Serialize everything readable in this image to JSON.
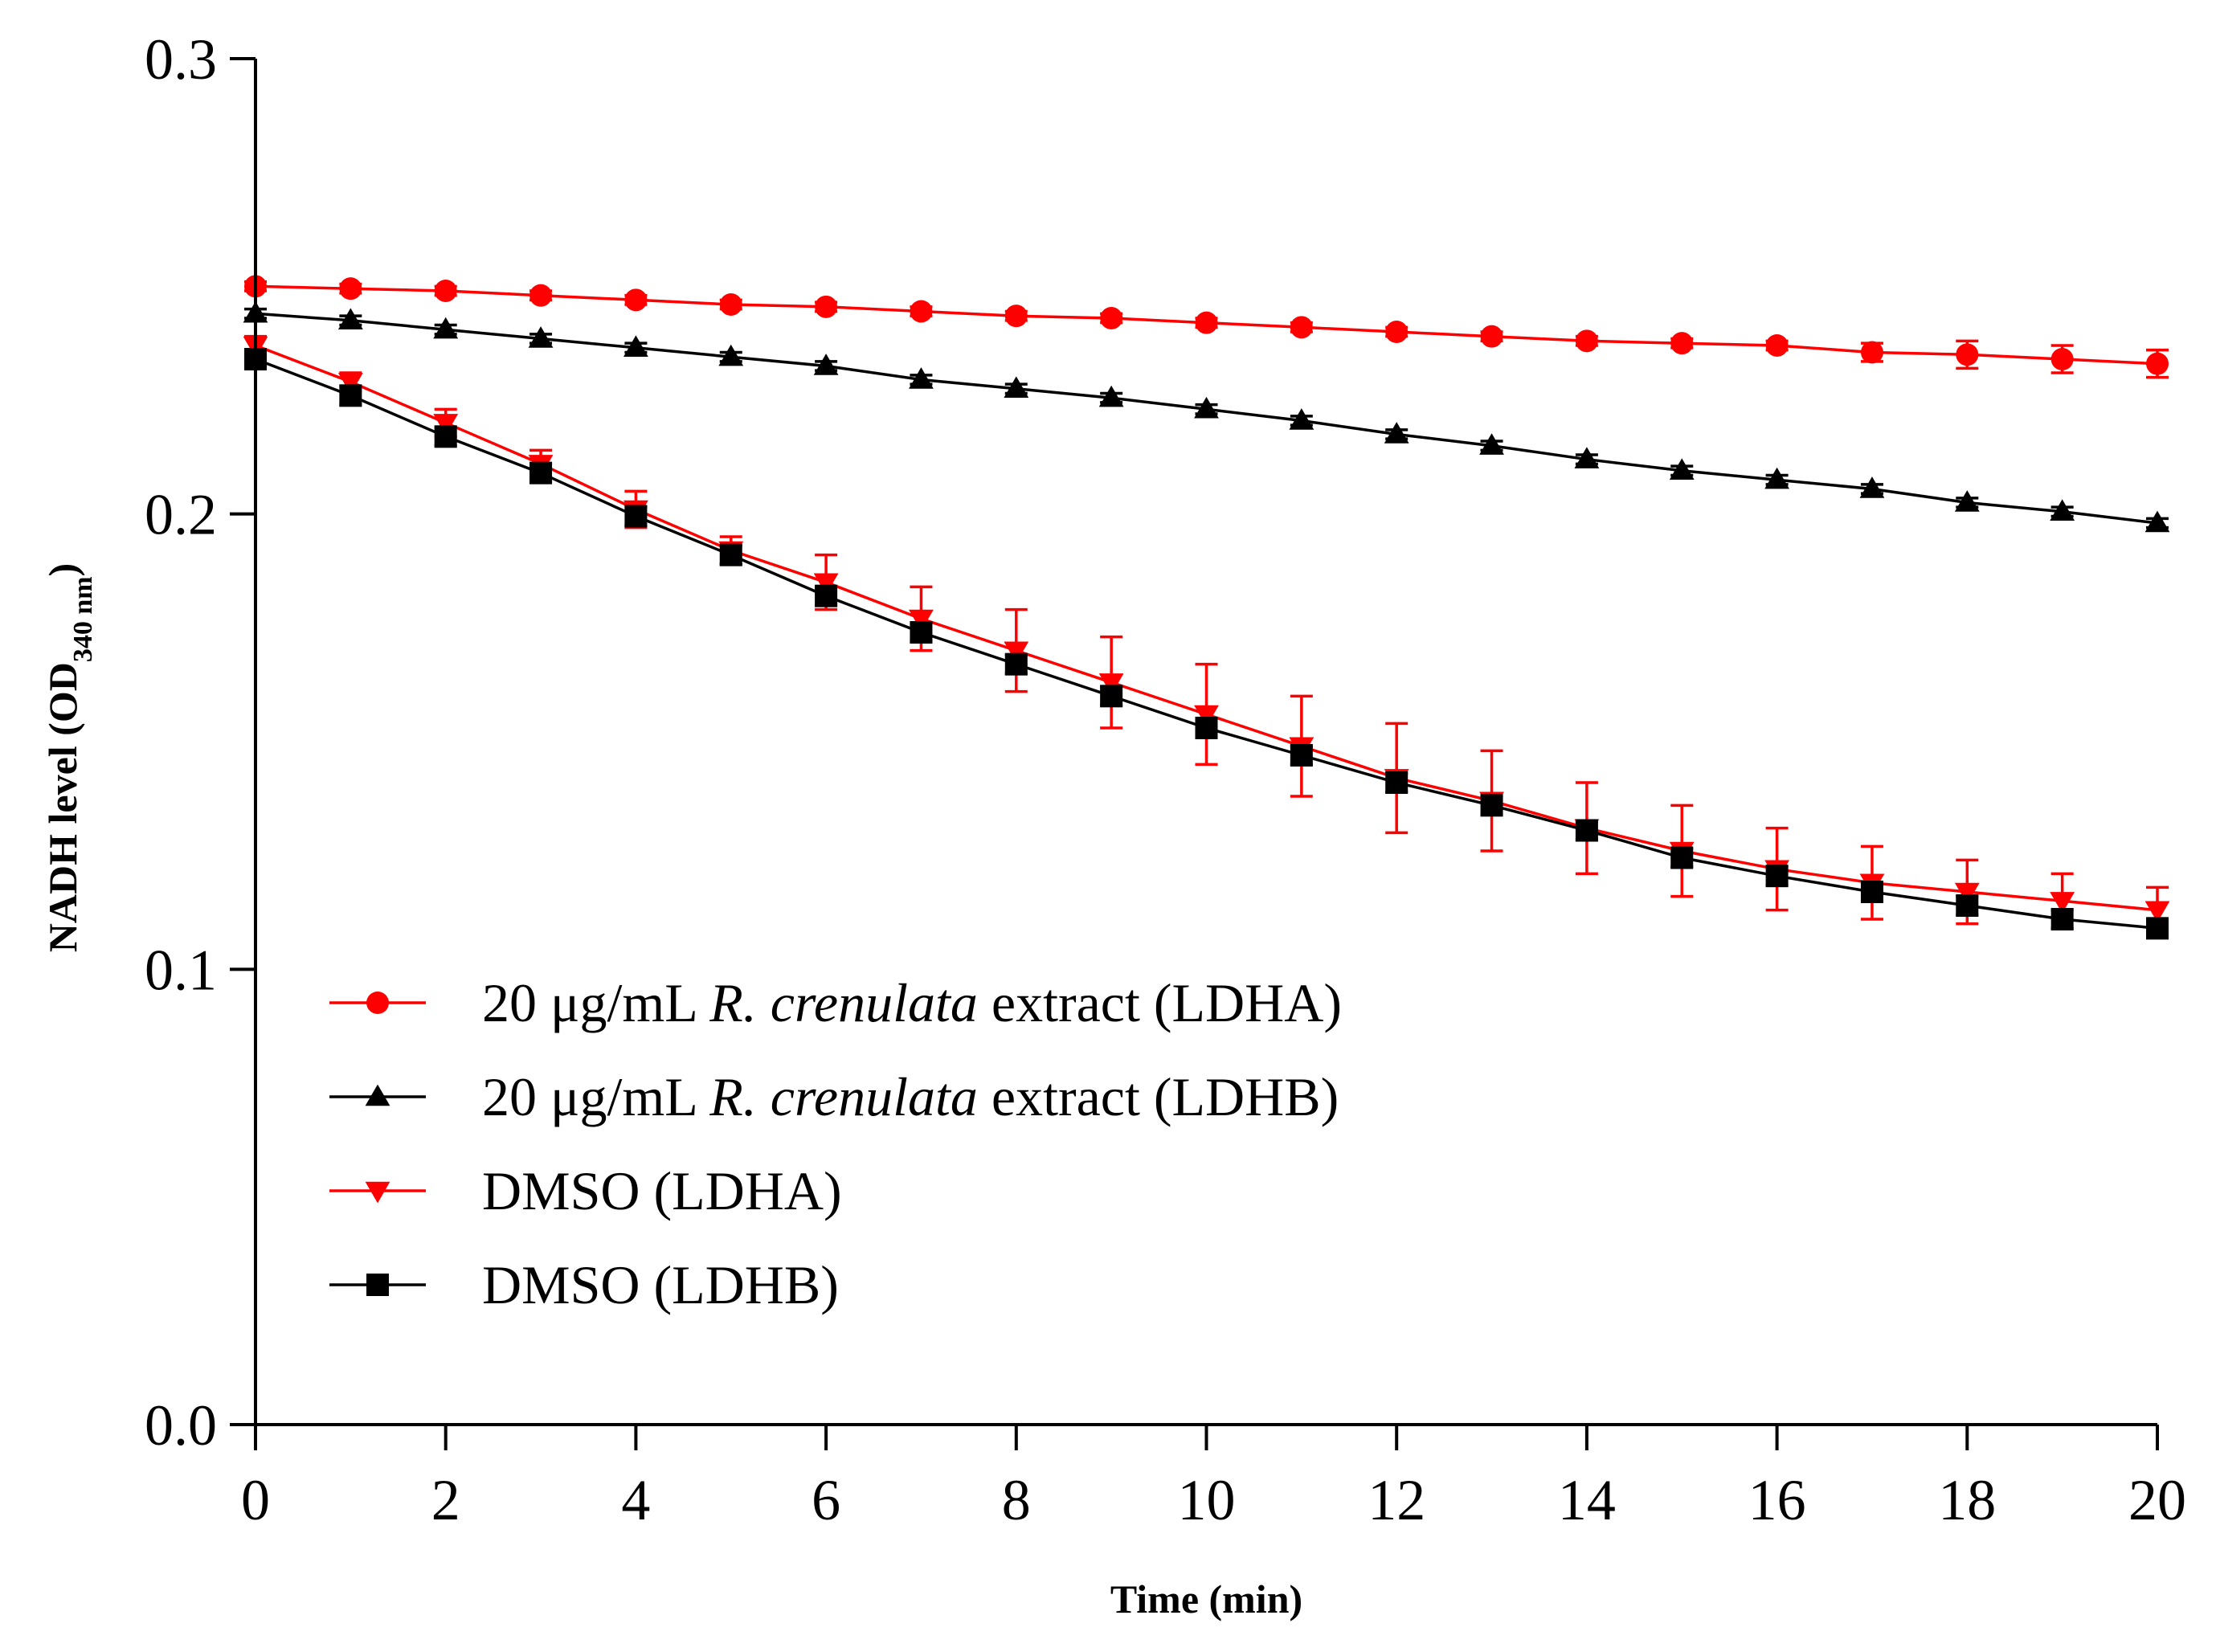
{
  "chart_data": {
    "type": "line",
    "title": "",
    "xlabel": "Time (min)",
    "ylabel": {
      "main": "NADH level (OD",
      "sub": "340 nm",
      "close": ")"
    },
    "xlim": [
      0,
      20
    ],
    "ylim": [
      0.0,
      0.3
    ],
    "xticks": [
      0,
      2,
      4,
      6,
      8,
      10,
      12,
      14,
      16,
      18,
      20
    ],
    "xtick_labels": [
      "0",
      "2",
      "4",
      "6",
      "8",
      "10",
      "12",
      "14",
      "16",
      "18",
      "20"
    ],
    "yticks": [
      0.0,
      0.1,
      0.2,
      0.3
    ],
    "ytick_labels": [
      "0.0",
      "0.1",
      "0.2",
      "0.3"
    ],
    "grid": false,
    "legend_position": "lower-left",
    "x": [
      0,
      1,
      2,
      3,
      4,
      5,
      6,
      7,
      8,
      9,
      10,
      11,
      12,
      13,
      14,
      15,
      16,
      17,
      18,
      19,
      20
    ],
    "series": [
      {
        "name": "20 μg/mL R. crenulata extract (LDHA)",
        "legend_parts": {
          "pre": "20 μg/mL ",
          "italic": "R. crenulata",
          "post": " extract (LDHA)"
        },
        "color": "#ff0000",
        "marker": "circle",
        "values": [
          0.25,
          0.2495,
          0.249,
          0.248,
          0.247,
          0.246,
          0.2455,
          0.2445,
          0.2435,
          0.243,
          0.242,
          0.241,
          0.24,
          0.239,
          0.238,
          0.2375,
          0.237,
          0.2355,
          0.235,
          0.234,
          0.233
        ],
        "errors": [
          0.001,
          0.001,
          0.001,
          0.001,
          0.001,
          0.001,
          0.001,
          0.001,
          0.001,
          0.001,
          0.001,
          0.001,
          0.001,
          0.001,
          0.001,
          0.001,
          0.001,
          0.002,
          0.003,
          0.003,
          0.003
        ]
      },
      {
        "name": "20 μg/mL R. crenulata extract (LDHB)",
        "legend_parts": {
          "pre": "20 μg/mL ",
          "italic": "R. crenulata",
          "post": " extract (LDHB)"
        },
        "color": "#000000",
        "marker": "triangle-up",
        "values": [
          0.244,
          0.2425,
          0.2405,
          0.2385,
          0.2365,
          0.2345,
          0.2325,
          0.2295,
          0.2275,
          0.2255,
          0.223,
          0.2205,
          0.2175,
          0.215,
          0.212,
          0.2095,
          0.2075,
          0.2055,
          0.2025,
          0.2005,
          0.198
        ],
        "errors": [
          0.001,
          0.001,
          0.001,
          0.001,
          0.001,
          0.001,
          0.001,
          0.001,
          0.001,
          0.001,
          0.001,
          0.001,
          0.001,
          0.001,
          0.001,
          0.001,
          0.001,
          0.001,
          0.001,
          0.001,
          0.001
        ]
      },
      {
        "name": "DMSO (LDHA)",
        "legend_parts": {
          "pre": "DMSO (LDHA)",
          "italic": "",
          "post": ""
        },
        "color": "#ff0000",
        "marker": "triangle-down",
        "values": [
          0.237,
          0.229,
          0.22,
          0.211,
          0.201,
          0.192,
          0.185,
          0.177,
          0.17,
          0.163,
          0.156,
          0.149,
          0.142,
          0.137,
          0.131,
          0.126,
          0.122,
          0.119,
          0.117,
          0.115,
          0.113
        ],
        "errors": [
          0.002,
          0.002,
          0.003,
          0.003,
          0.004,
          0.003,
          0.006,
          0.007,
          0.009,
          0.01,
          0.011,
          0.011,
          0.012,
          0.011,
          0.01,
          0.01,
          0.009,
          0.008,
          0.007,
          0.006,
          0.005
        ]
      },
      {
        "name": "DMSO (LDHB)",
        "legend_parts": {
          "pre": "DMSO (LDHB)",
          "italic": "",
          "post": ""
        },
        "color": "#000000",
        "marker": "square",
        "values": [
          0.234,
          0.226,
          0.217,
          0.209,
          0.1995,
          0.191,
          0.182,
          0.174,
          0.167,
          0.16,
          0.153,
          0.147,
          0.141,
          0.136,
          0.1305,
          0.1245,
          0.1205,
          0.117,
          0.114,
          0.111,
          0.109
        ],
        "errors": [
          0.002,
          0.002,
          0.002,
          0.002,
          0.002,
          0.002,
          0.002,
          0.002,
          0.002,
          0.002,
          0.002,
          0.002,
          0.002,
          0.002,
          0.002,
          0.002,
          0.002,
          0.002,
          0.002,
          0.002,
          0.002
        ]
      }
    ]
  }
}
